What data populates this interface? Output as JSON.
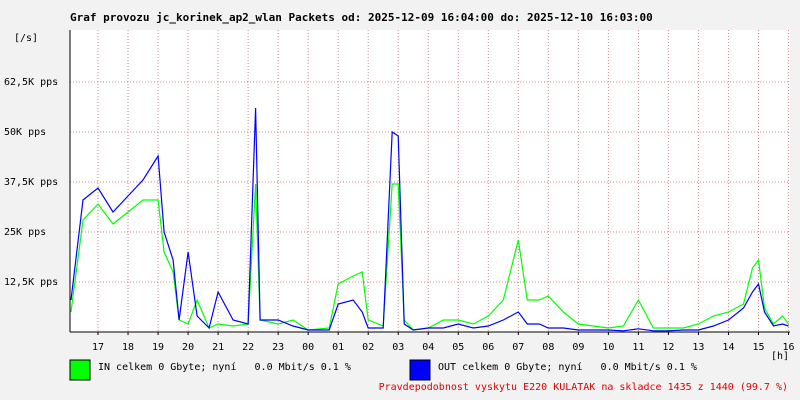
{
  "chart_data": {
    "type": "line",
    "title": "Graf provozu jc_korinek_ap2_wlan Packets od: 2025-12-09 16:04:00 do: 2025-12-10 16:03:00",
    "y_label": "[/s]",
    "x_label": "[h]",
    "xlim": [
      16.067,
      40.05
    ],
    "xticks": [
      {
        "value": 17,
        "label": "17"
      },
      {
        "value": 18,
        "label": "18"
      },
      {
        "value": 19,
        "label": "19"
      },
      {
        "value": 20,
        "label": "20"
      },
      {
        "value": 21,
        "label": "21"
      },
      {
        "value": 22,
        "label": "22"
      },
      {
        "value": 23,
        "label": "23"
      },
      {
        "value": 24,
        "label": "00"
      },
      {
        "value": 25,
        "label": "01"
      },
      {
        "value": 26,
        "label": "02"
      },
      {
        "value": 27,
        "label": "03"
      },
      {
        "value": 28,
        "label": "04"
      },
      {
        "value": 29,
        "label": "05"
      },
      {
        "value": 30,
        "label": "06"
      },
      {
        "value": 31,
        "label": "07"
      },
      {
        "value": 32,
        "label": "08"
      },
      {
        "value": 33,
        "label": "09"
      },
      {
        "value": 34,
        "label": "10"
      },
      {
        "value": 35,
        "label": "11"
      },
      {
        "value": 36,
        "label": "12"
      },
      {
        "value": 37,
        "label": "13"
      },
      {
        "value": 38,
        "label": "14"
      },
      {
        "value": 39,
        "label": "15"
      },
      {
        "value": 40,
        "label": "16"
      }
    ],
    "ylim": [
      0,
      75000
    ],
    "yticks": [
      {
        "value": 12500,
        "label": "12,5K pps"
      },
      {
        "value": 25000,
        "label": "25K pps"
      },
      {
        "value": 37500,
        "label": "37,5K pps"
      },
      {
        "value": 50000,
        "label": "50K pps"
      },
      {
        "value": 62500,
        "label": "62,5K pps"
      }
    ],
    "grid": true,
    "x": [
      16.1,
      16.5,
      17.0,
      17.5,
      18.0,
      18.5,
      19.0,
      19.2,
      19.5,
      19.7,
      20.0,
      20.3,
      20.7,
      21.0,
      21.5,
      22.0,
      22.25,
      22.4,
      23.0,
      23.5,
      24.0,
      24.7,
      25.0,
      25.5,
      25.8,
      26.0,
      26.5,
      26.8,
      27.0,
      27.2,
      27.5,
      28.0,
      28.5,
      29.0,
      29.5,
      30.0,
      30.5,
      31.0,
      31.3,
      31.7,
      32.0,
      32.5,
      33.0,
      33.5,
      34.0,
      34.5,
      35.0,
      35.5,
      36.0,
      36.5,
      37.0,
      37.5,
      38.0,
      38.5,
      38.8,
      39.0,
      39.2,
      39.5,
      39.8,
      40.0
    ],
    "series": [
      {
        "name": "IN celkem 0 Gbyte; nyní   0.0 Mbit/s 0.1 %",
        "color": "#00ff00",
        "values": [
          5000,
          28000,
          32000,
          27000,
          30000,
          33000,
          33000,
          20000,
          15000,
          3000,
          2000,
          8000,
          1000,
          2000,
          1500,
          2000,
          37000,
          3000,
          2000,
          3000,
          500,
          1000,
          12000,
          14000,
          15000,
          3000,
          1500,
          37000,
          37000,
          3000,
          500,
          1000,
          3000,
          3000,
          2000,
          4000,
          8000,
          23000,
          8000,
          8000,
          9000,
          5000,
          2000,
          1500,
          1000,
          1500,
          8000,
          1000,
          1000,
          1000,
          2000,
          4000,
          5000,
          7000,
          16000,
          18000,
          6000,
          2000,
          4000,
          2000
        ]
      },
      {
        "name": "OUT celkem 0 Gbyte; nyní   0.0 Mbit/s 0.1 %",
        "color": "#0000ff",
        "values": [
          8000,
          33000,
          36000,
          30000,
          34000,
          38000,
          44000,
          25000,
          18000,
          3000,
          20000,
          4000,
          1000,
          10000,
          3000,
          2000,
          56000,
          3000,
          3000,
          1500,
          500,
          500,
          7000,
          8000,
          5000,
          1000,
          1000,
          50000,
          49000,
          2000,
          500,
          1000,
          1000,
          2000,
          1000,
          1500,
          3000,
          5000,
          2000,
          2000,
          1000,
          1000,
          500,
          500,
          500,
          300,
          800,
          300,
          300,
          500,
          500,
          1500,
          3000,
          6000,
          10000,
          12000,
          5000,
          1500,
          2000,
          1500
        ]
      }
    ],
    "footer": "Pravdepodobnost vyskytu E220 KULATAK na skladce 1435 z 1440 (99.7 %)"
  }
}
